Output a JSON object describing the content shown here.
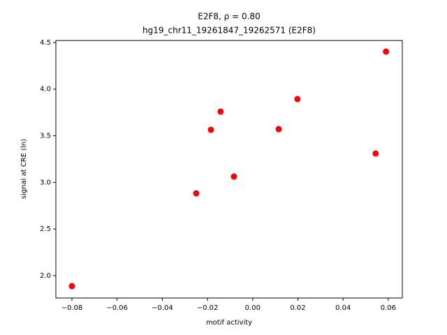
{
  "chart_data": {
    "type": "scatter",
    "title": "E2F8, ρ = 0.80",
    "subtitle": "hg19_chr11_19261847_19262571 (E2F8)",
    "x_label": "motif activity",
    "y_label": "signal at CRE (ln)",
    "color": "#ff0000",
    "x": [
      -0.08,
      -0.025,
      -0.0185,
      -0.0142,
      -0.0083,
      0.0115,
      0.0198,
      0.0544,
      0.059
    ],
    "values": [
      1.888,
      2.883,
      3.564,
      3.759,
      3.063,
      3.572,
      3.894,
      3.31,
      4.403
    ],
    "xlim": [
      -0.0871,
      0.0662
    ],
    "ylim": [
      1.76,
      4.522
    ],
    "xticks": [
      {
        "value": -0.08,
        "label": "−0.08"
      },
      {
        "value": -0.06,
        "label": "−0.06"
      },
      {
        "value": -0.04,
        "label": "−0.04"
      },
      {
        "value": -0.02,
        "label": "−0.02"
      },
      {
        "value": 0,
        "label": "0.00"
      },
      0.02,
      0.04,
      0.06
    ],
    "yticks": [
      {
        "value": 2,
        "label": "2.0"
      },
      2.5,
      {
        "value": 3,
        "label": "3.0"
      },
      3.5,
      {
        "value": 4,
        "label": "4.0"
      },
      4.5
    ],
    "grid": false
  }
}
